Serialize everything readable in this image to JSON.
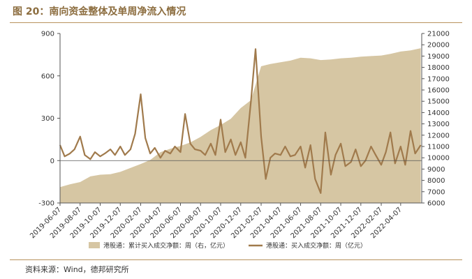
{
  "header": {
    "title": "图 20：南向资金整体及单周净流入情况"
  },
  "footer": {
    "source": "资料来源：Wind，德邦研究所"
  },
  "colors": {
    "area": "#d6c6a3",
    "line": "#a07a4c",
    "accent": "#8c6d3f"
  },
  "chart_data": {
    "type": "line",
    "x_tick_labels": [
      "2019-06-07",
      "2019-08-07",
      "2019-10-07",
      "2019-12-07",
      "2020-02-07",
      "2020-04-07",
      "2020-06-07",
      "2020-08-07",
      "2020-10-07",
      "2020-12-07",
      "2021-02-07",
      "2021-04-07",
      "2021-06-07",
      "2021-08-07",
      "2021-10-07",
      "2021-12-07",
      "2022-02-07",
      "2022-04-07"
    ],
    "left_axis": {
      "ylim": [
        -300,
        900
      ],
      "ticks": [
        -300,
        0,
        300,
        600,
        900
      ]
    },
    "right_axis": {
      "ylim": [
        6000,
        21000
      ],
      "ticks": [
        6000,
        7000,
        8000,
        9000,
        10000,
        11000,
        12000,
        13000,
        14000,
        15000,
        16000,
        17000,
        18000,
        19000,
        20000,
        21000
      ]
    },
    "legend_position": "bottom",
    "series": [
      {
        "name": "港股通：累计买入成交净额：周（右，亿元）",
        "type": "area",
        "axis": "right",
        "x": [
          "2019-06-07",
          "2019-07-07",
          "2019-08-07",
          "2019-09-07",
          "2019-10-07",
          "2019-11-07",
          "2019-12-07",
          "2020-01-07",
          "2020-02-07",
          "2020-03-07",
          "2020-04-07",
          "2020-05-07",
          "2020-06-07",
          "2020-07-07",
          "2020-08-07",
          "2020-09-07",
          "2020-10-07",
          "2020-11-07",
          "2020-12-07",
          "2021-01-07",
          "2021-02-07",
          "2021-03-07",
          "2021-04-07",
          "2021-05-07",
          "2021-06-07",
          "2021-07-07",
          "2021-08-07",
          "2021-09-07",
          "2021-10-07",
          "2021-11-07",
          "2021-12-07",
          "2022-01-07",
          "2022-02-07",
          "2022-03-07",
          "2022-04-07",
          "2022-05-07",
          "2022-06-07"
        ],
        "values": [
          7400,
          7650,
          7850,
          8350,
          8500,
          8550,
          8750,
          9100,
          9450,
          9800,
          10500,
          10800,
          11050,
          11350,
          11850,
          12450,
          12900,
          13450,
          14400,
          15100,
          18100,
          18300,
          18450,
          18600,
          18850,
          18800,
          18650,
          18700,
          18800,
          18850,
          18950,
          19000,
          19050,
          19200,
          19400,
          19500,
          19700
        ]
      },
      {
        "name": "港股通：买入成交净额：周（亿元）",
        "type": "line",
        "axis": "left",
        "x": [
          "2019-06-07",
          "2019-06-21",
          "2019-07-07",
          "2019-07-21",
          "2019-08-07",
          "2019-08-21",
          "2019-09-07",
          "2019-09-21",
          "2019-10-07",
          "2019-10-21",
          "2019-11-07",
          "2019-11-21",
          "2019-12-07",
          "2019-12-21",
          "2020-01-07",
          "2020-01-21",
          "2020-02-07",
          "2020-02-21",
          "2020-03-07",
          "2020-03-21",
          "2020-04-07",
          "2020-04-21",
          "2020-05-07",
          "2020-05-21",
          "2020-06-07",
          "2020-06-21",
          "2020-07-07",
          "2020-07-21",
          "2020-08-07",
          "2020-08-21",
          "2020-09-07",
          "2020-09-21",
          "2020-10-07",
          "2020-10-21",
          "2020-11-07",
          "2020-11-21",
          "2020-12-07",
          "2020-12-21",
          "2021-01-07",
          "2021-01-21",
          "2021-02-07",
          "2021-02-21",
          "2021-03-07",
          "2021-03-21",
          "2021-04-07",
          "2021-04-21",
          "2021-05-07",
          "2021-05-21",
          "2021-06-07",
          "2021-06-21",
          "2021-07-07",
          "2021-07-21",
          "2021-08-07",
          "2021-08-21",
          "2021-09-07",
          "2021-09-21",
          "2021-10-07",
          "2021-10-21",
          "2021-11-07",
          "2021-11-21",
          "2021-12-07",
          "2021-12-21",
          "2022-01-07",
          "2022-01-21",
          "2022-02-07",
          "2022-02-21",
          "2022-03-07",
          "2022-03-21",
          "2022-04-07",
          "2022-04-21",
          "2022-05-07",
          "2022-05-21",
          "2022-06-07"
        ],
        "values": [
          110,
          30,
          50,
          80,
          170,
          40,
          10,
          60,
          30,
          50,
          80,
          40,
          100,
          40,
          80,
          190,
          470,
          160,
          50,
          90,
          20,
          70,
          50,
          100,
          60,
          330,
          120,
          80,
          70,
          40,
          120,
          40,
          290,
          60,
          150,
          40,
          130,
          20,
          420,
          790,
          170,
          -130,
          20,
          50,
          40,
          100,
          30,
          40,
          100,
          -50,
          110,
          -130,
          -230,
          200,
          -100,
          40,
          120,
          -40,
          -10,
          80,
          -40,
          0,
          100,
          40,
          -30,
          60,
          200,
          -20,
          100,
          -30,
          210,
          50,
          110
        ]
      }
    ]
  }
}
